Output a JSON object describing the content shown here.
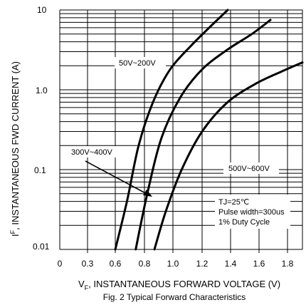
{
  "chart_data": {
    "type": "line",
    "title": "Fig. 2  Typical Forward Characteristics",
    "xlabel": {
      "main": "V",
      "sub": "F",
      "rest": ", INSTANTANEOUS FORWARD VOLTAGE (V)"
    },
    "ylabel": {
      "main": "I",
      "sup": "F",
      "rest": ", INSTANTANEOUS FWD CURRENT (A)"
    },
    "x_ticks": [
      "0",
      "0.3",
      "0.6",
      "0.8",
      "1.0",
      "1.2",
      "1.4",
      "1.6",
      "1.8"
    ],
    "y_ticks": [
      "10",
      "1.0",
      "0.1",
      "0.01"
    ],
    "xlim": [
      0.1,
      1.9
    ],
    "ylim": [
      0.01,
      10
    ],
    "y_scale": "log",
    "grid": true,
    "series": [
      {
        "name": "50V~200V",
        "x": [
          0.6,
          0.68,
          0.76,
          0.86,
          0.98,
          1.12,
          1.25,
          1.38
        ],
        "y": [
          0.01,
          0.04,
          0.2,
          0.7,
          1.8,
          3.5,
          6.0,
          10.0
        ]
      },
      {
        "name": "300V~400V",
        "x": [
          0.74,
          0.82,
          0.92,
          1.05,
          1.2,
          1.38,
          1.55,
          1.68
        ],
        "y": [
          0.01,
          0.05,
          0.25,
          0.8,
          1.8,
          3.2,
          5.0,
          7.5
        ]
      },
      {
        "name": "500V~600V",
        "x": [
          0.87,
          0.95,
          1.06,
          1.2,
          1.38,
          1.58,
          1.76,
          1.9
        ],
        "y": [
          0.01,
          0.03,
          0.1,
          0.3,
          0.7,
          1.2,
          1.7,
          2.2
        ]
      }
    ],
    "annotations": [
      "TJ=25℃",
      "Pulse width=300us",
      "1% Duty Cycle"
    ]
  }
}
